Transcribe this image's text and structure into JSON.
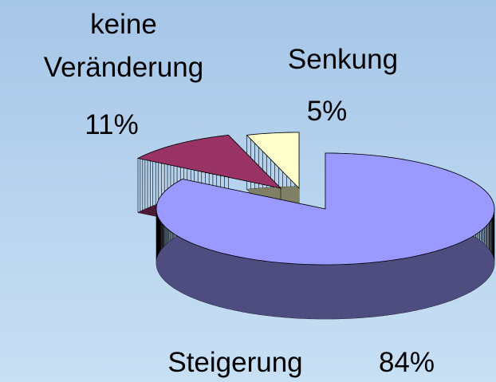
{
  "chart_data": {
    "type": "pie3d",
    "categories": [
      "Steigerung",
      "keine Veränderung",
      "Senkung"
    ],
    "values": [
      84,
      11,
      5
    ],
    "value_labels": [
      "84%",
      "11%",
      "5%"
    ],
    "colors": [
      "#9999ff",
      "#993366",
      "#ffffcc"
    ]
  }
}
